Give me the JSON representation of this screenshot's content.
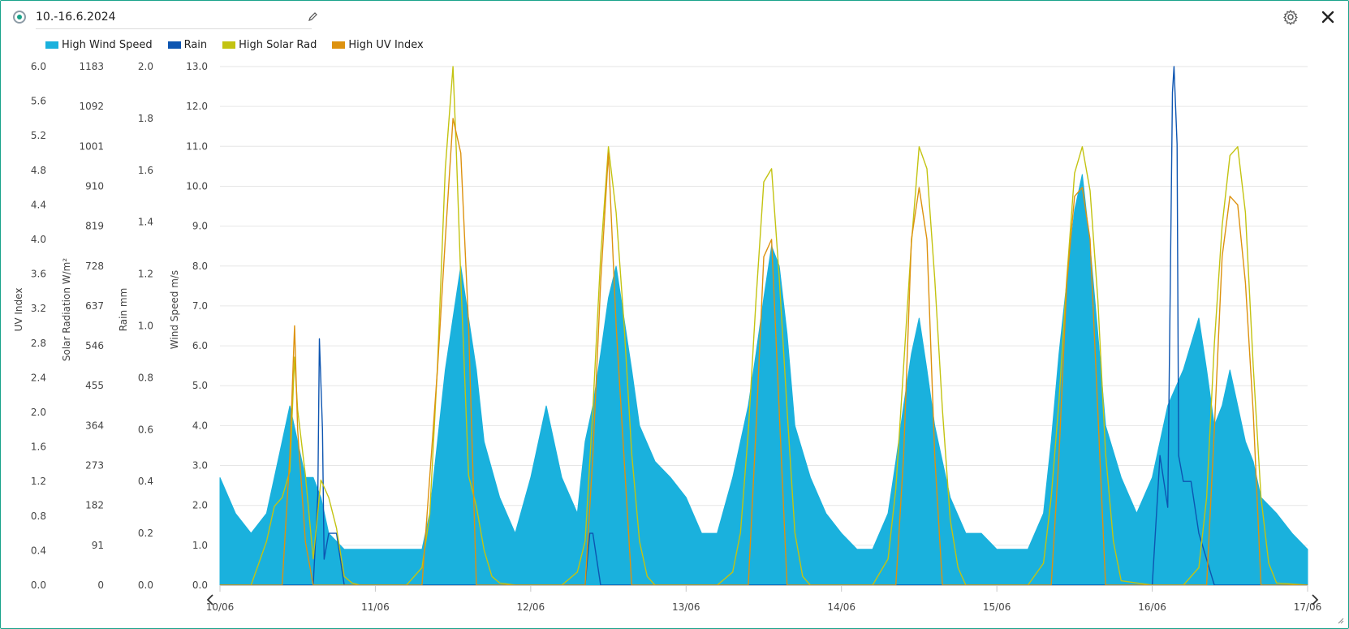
{
  "header": {
    "title": "10.-16.6.2024",
    "status_color": "#19a38a"
  },
  "icons": {
    "status": "radio-dot-icon",
    "edit": "pencil-icon",
    "settings": "gear-icon",
    "close": "close-icon",
    "prev": "chevron-left-icon",
    "next": "chevron-right-icon"
  },
  "chart_data": {
    "type": "line",
    "x_range": [
      "10/06",
      "17/06"
    ],
    "x_ticks": [
      "10/06",
      "11/06",
      "12/06",
      "13/06",
      "14/06",
      "15/06",
      "16/06",
      "17/06"
    ],
    "grid": true,
    "legend_position": "top-left",
    "legend": [
      {
        "name": "High Wind Speed",
        "color": "#1ab1dd"
      },
      {
        "name": "Rain",
        "color": "#0d55b1"
      },
      {
        "name": "High Solar Rad",
        "color": "#c3c311"
      },
      {
        "name": "High UV Index",
        "color": "#dd920f"
      }
    ],
    "axes": [
      {
        "label": "UV Index",
        "range": [
          0,
          6.0
        ],
        "ticks": [
          "0.0",
          "0.4",
          "0.8",
          "1.2",
          "1.6",
          "2.0",
          "2.4",
          "2.8",
          "3.2",
          "3.6",
          "4.0",
          "4.4",
          "4.8",
          "5.2",
          "5.6",
          "6.0"
        ]
      },
      {
        "label": "Solar Radiation W/m²",
        "range": [
          0,
          1183
        ],
        "ticks": [
          "0",
          "91",
          "182",
          "273",
          "364",
          "455",
          "546",
          "637",
          "728",
          "819",
          "910",
          "1001",
          "1092",
          "1183"
        ]
      },
      {
        "label": "Rain mm",
        "range": [
          0,
          2.0
        ],
        "ticks": [
          "0.0",
          "0.2",
          "0.4",
          "0.6",
          "0.8",
          "1.0",
          "1.2",
          "1.4",
          "1.6",
          "1.8",
          "2.0"
        ]
      },
      {
        "label": "Wind Speed m/s",
        "range": [
          0,
          13.0
        ],
        "ticks": [
          "0.0",
          "1.0",
          "2.0",
          "3.0",
          "4.0",
          "5.0",
          "6.0",
          "7.0",
          "8.0",
          "9.0",
          "10.0",
          "11.0",
          "12.0",
          "13.0"
        ]
      }
    ],
    "series": [
      {
        "name": "High Wind Speed",
        "unit": "m/s",
        "x_days": [
          0.0,
          0.1,
          0.2,
          0.3,
          0.35,
          0.4,
          0.45,
          0.5,
          0.55,
          0.6,
          0.65,
          0.7,
          0.8,
          0.9,
          1.0,
          1.1,
          1.2,
          1.3,
          1.35,
          1.4,
          1.45,
          1.5,
          1.55,
          1.6,
          1.65,
          1.7,
          1.8,
          1.9,
          2.0,
          2.1,
          2.2,
          2.3,
          2.35,
          2.4,
          2.45,
          2.5,
          2.55,
          2.6,
          2.65,
          2.7,
          2.8,
          2.9,
          3.0,
          3.1,
          3.2,
          3.3,
          3.35,
          3.4,
          3.45,
          3.5,
          3.55,
          3.6,
          3.65,
          3.7,
          3.8,
          3.9,
          4.0,
          4.1,
          4.2,
          4.3,
          4.35,
          4.4,
          4.45,
          4.5,
          4.55,
          4.6,
          4.65,
          4.7,
          4.8,
          4.9,
          5.0,
          5.1,
          5.2,
          5.3,
          5.35,
          5.4,
          5.45,
          5.5,
          5.55,
          5.6,
          5.65,
          5.7,
          5.8,
          5.9,
          6.0,
          6.1,
          6.2,
          6.3,
          6.35,
          6.4,
          6.45,
          6.5,
          6.55,
          6.6,
          6.65,
          6.7,
          6.8,
          6.9,
          7.0
        ],
        "values": [
          2.7,
          1.8,
          1.3,
          1.8,
          2.7,
          3.6,
          4.5,
          3.6,
          2.7,
          2.7,
          2.2,
          1.3,
          0.9,
          0.9,
          0.9,
          0.9,
          0.9,
          0.9,
          1.8,
          3.6,
          5.4,
          6.7,
          8.0,
          6.7,
          5.4,
          3.6,
          2.2,
          1.3,
          2.7,
          4.5,
          2.7,
          1.8,
          3.6,
          4.5,
          5.8,
          7.2,
          8.0,
          6.7,
          5.4,
          4.0,
          3.1,
          2.7,
          2.2,
          1.3,
          1.3,
          2.7,
          3.6,
          4.5,
          5.8,
          7.2,
          8.5,
          8.0,
          6.3,
          4.0,
          2.7,
          1.8,
          1.3,
          0.9,
          0.9,
          1.8,
          3.1,
          4.5,
          5.8,
          6.7,
          5.4,
          4.0,
          3.1,
          2.2,
          1.3,
          1.3,
          0.9,
          0.9,
          0.9,
          1.8,
          3.6,
          5.8,
          7.6,
          9.4,
          10.3,
          8.5,
          6.3,
          4.0,
          2.7,
          1.8,
          2.7,
          4.5,
          5.4,
          6.7,
          5.4,
          4.0,
          4.5,
          5.4,
          4.5,
          3.6,
          3.1,
          2.2,
          1.8,
          1.3,
          0.9
        ]
      },
      {
        "name": "Rain",
        "unit": "mm",
        "x_days": [
          0.0,
          0.6,
          0.63,
          0.64,
          0.66,
          0.67,
          0.7,
          0.75,
          0.8,
          2.35,
          2.38,
          2.4,
          2.45,
          3.0,
          6.0,
          6.05,
          6.1,
          6.13,
          6.14,
          6.16,
          6.17,
          6.2,
          6.25,
          6.3,
          6.4,
          7.0
        ],
        "values": [
          0.0,
          0.0,
          0.35,
          0.95,
          0.6,
          0.1,
          0.2,
          0.2,
          0.0,
          0.0,
          0.2,
          0.2,
          0.0,
          0.0,
          0.0,
          0.5,
          0.3,
          1.9,
          2.0,
          1.7,
          0.5,
          0.4,
          0.4,
          0.2,
          0.0,
          0.0
        ]
      },
      {
        "name": "High Solar Rad",
        "unit": "W/m²",
        "x_days": [
          0.0,
          0.2,
          0.3,
          0.35,
          0.4,
          0.45,
          0.48,
          0.5,
          0.55,
          0.6,
          0.65,
          0.7,
          0.75,
          0.8,
          0.85,
          0.9,
          1.0,
          1.2,
          1.3,
          1.35,
          1.4,
          1.45,
          1.5,
          1.52,
          1.55,
          1.6,
          1.65,
          1.7,
          1.75,
          1.8,
          1.9,
          2.0,
          2.2,
          2.3,
          2.35,
          2.4,
          2.45,
          2.5,
          2.55,
          2.6,
          2.65,
          2.7,
          2.75,
          2.8,
          3.0,
          3.2,
          3.3,
          3.35,
          3.4,
          3.45,
          3.5,
          3.55,
          3.6,
          3.65,
          3.7,
          3.75,
          3.8,
          4.0,
          4.2,
          4.3,
          4.35,
          4.4,
          4.45,
          4.5,
          4.55,
          4.6,
          4.65,
          4.7,
          4.75,
          4.8,
          5.0,
          5.2,
          5.3,
          5.35,
          5.4,
          5.45,
          5.5,
          5.55,
          5.6,
          5.65,
          5.7,
          5.75,
          5.8,
          6.0,
          6.2,
          6.3,
          6.35,
          6.4,
          6.45,
          6.5,
          6.55,
          6.6,
          6.65,
          6.7,
          6.75,
          6.8,
          7.0
        ],
        "values": [
          0,
          0,
          100,
          180,
          200,
          260,
          520,
          400,
          250,
          60,
          240,
          200,
          130,
          20,
          5,
          0,
          0,
          0,
          40,
          160,
          500,
          950,
          1183,
          1000,
          700,
          250,
          180,
          80,
          20,
          5,
          0,
          0,
          0,
          30,
          100,
          400,
          750,
          1000,
          850,
          600,
          300,
          100,
          20,
          0,
          0,
          0,
          30,
          120,
          350,
          650,
          920,
          950,
          700,
          400,
          120,
          20,
          0,
          0,
          0,
          60,
          220,
          500,
          780,
          1000,
          950,
          700,
          400,
          150,
          40,
          0,
          0,
          0,
          50,
          200,
          420,
          700,
          940,
          1000,
          900,
          650,
          300,
          100,
          10,
          0,
          0,
          40,
          200,
          550,
          820,
          980,
          1000,
          850,
          500,
          200,
          50,
          5,
          0
        ]
      },
      {
        "name": "High UV Index",
        "unit": "UV Index",
        "x_days": [
          0.0,
          0.4,
          0.45,
          0.48,
          0.5,
          0.55,
          0.6,
          1.3,
          1.4,
          1.45,
          1.5,
          1.55,
          1.6,
          1.65,
          2.35,
          2.4,
          2.45,
          2.5,
          2.55,
          2.6,
          2.65,
          3.4,
          3.45,
          3.5,
          3.55,
          3.6,
          3.65,
          4.35,
          4.4,
          4.45,
          4.5,
          4.55,
          4.6,
          4.65,
          5.35,
          5.4,
          5.45,
          5.5,
          5.55,
          5.6,
          5.65,
          5.7,
          6.35,
          6.4,
          6.45,
          6.5,
          6.55,
          6.6,
          6.65,
          6.7,
          7.0
        ],
        "values": [
          0,
          0,
          1.5,
          3.0,
          1.8,
          0.5,
          0,
          0,
          2.5,
          4.0,
          5.4,
          5.0,
          3.0,
          0,
          0,
          1.5,
          3.5,
          5.0,
          3.0,
          1.5,
          0,
          0,
          1.8,
          3.8,
          4.0,
          2.0,
          0,
          0,
          1.5,
          4.0,
          4.6,
          4.0,
          1.5,
          0,
          0,
          1.5,
          3.5,
          4.5,
          4.6,
          4.0,
          2.0,
          0,
          0,
          1.8,
          3.8,
          4.5,
          4.4,
          3.5,
          2.0,
          0,
          0
        ]
      }
    ]
  }
}
